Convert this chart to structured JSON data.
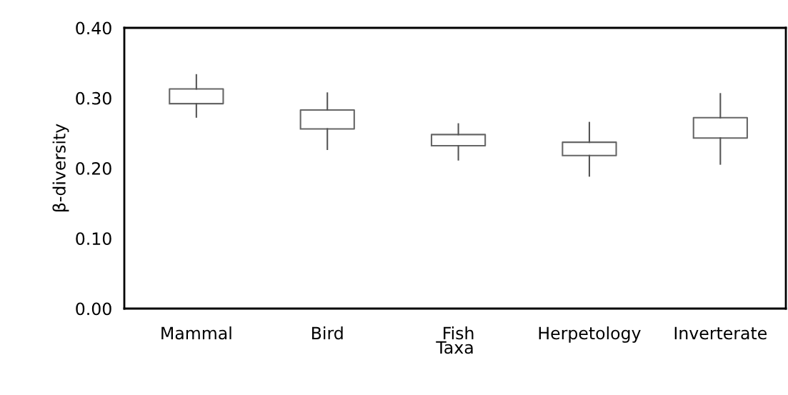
{
  "chart_data": {
    "type": "box",
    "xlabel": "Taxa",
    "ylabel": "β-diversity",
    "categories": [
      "Mammal",
      "Bird",
      "Fish",
      "Herpetology",
      "Inverterate"
    ],
    "boxes": [
      {
        "low": 0.273,
        "q1": 0.292,
        "q3": 0.313,
        "high": 0.333
      },
      {
        "low": 0.227,
        "q1": 0.256,
        "q3": 0.283,
        "high": 0.307
      },
      {
        "low": 0.212,
        "q1": 0.232,
        "q3": 0.248,
        "high": 0.263
      },
      {
        "low": 0.189,
        "q1": 0.218,
        "q3": 0.237,
        "high": 0.265
      },
      {
        "low": 0.206,
        "q1": 0.243,
        "q3": 0.272,
        "high": 0.306
      }
    ],
    "ylim": [
      0,
      0.4
    ],
    "yticks": [
      {
        "value": 0,
        "label": "0.00"
      },
      {
        "value": 0.1,
        "label": "0.10"
      },
      {
        "value": 0.2,
        "label": "0.20"
      },
      {
        "value": 0.3,
        "label": "0.30"
      },
      {
        "value": 0.4,
        "label": "0.40"
      }
    ],
    "grid": false,
    "legend": false
  }
}
